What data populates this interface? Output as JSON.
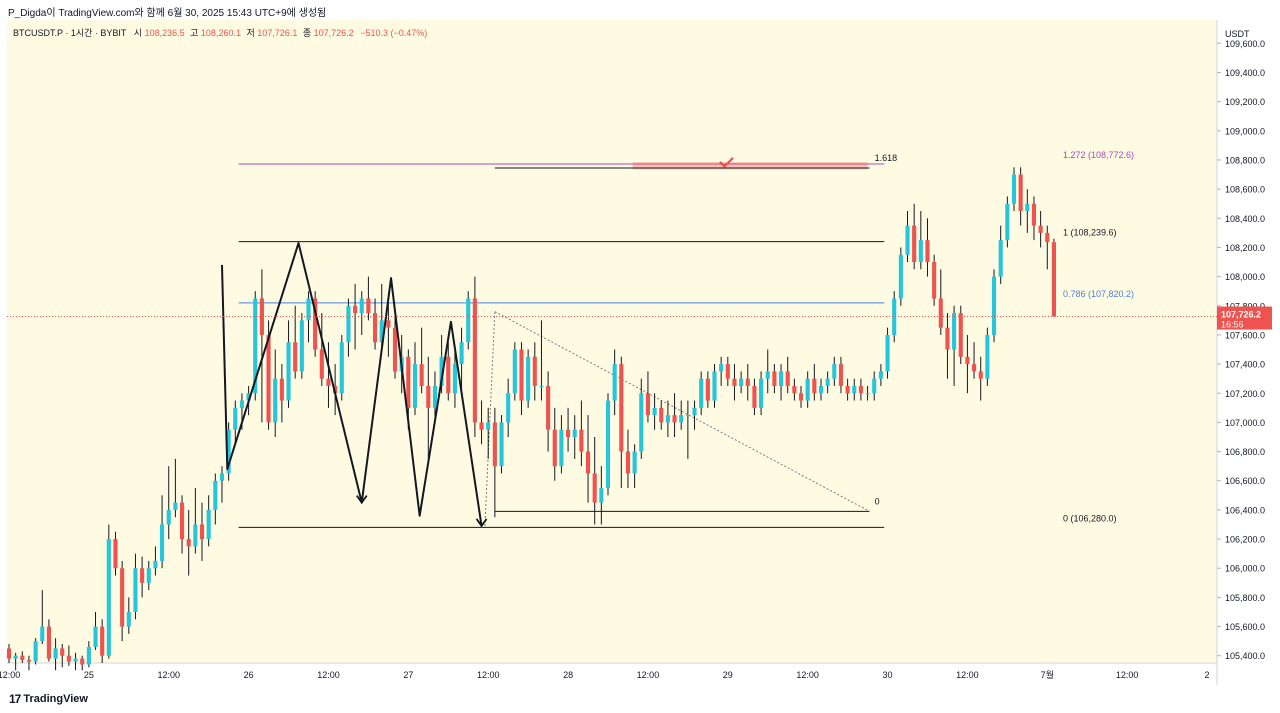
{
  "caption": "P_Digda이 TradingView.com와 함께 6월 30, 2025 15:43 UTC+9에 생성됨",
  "footer": {
    "logo_mark": "17",
    "brand": "TradingView"
  },
  "legend": {
    "symbol": "BTCUSDT.P · 1시간 · BYBIT",
    "o_label": "시",
    "o_value": "108,236.5",
    "h_label": "고",
    "h_value": "108,260.1",
    "l_label": "저",
    "l_value": "107,726.1",
    "c_label": "종",
    "c_value": "107,726.2",
    "change": "−510.3 (−0.47%)"
  },
  "colors": {
    "background": "#fffbe3",
    "up": "#26c6da",
    "down": "#ef5350",
    "wick": "#131722",
    "fib_1272": "#ab47bc",
    "fib_0786": "#4a7fe0",
    "price_tag": "#ef5350"
  },
  "chart_data": {
    "type": "candlestick",
    "currency": "USDT",
    "ylim": [
      105350,
      109760
    ],
    "y_ticks": [
      105400,
      105600,
      105800,
      106000,
      106200,
      106400,
      106600,
      106800,
      107000,
      107200,
      107400,
      107600,
      107800,
      108000,
      108200,
      108400,
      108600,
      108800,
      109000,
      109200,
      109400,
      109600
    ],
    "y_tick_labels": [
      "105,400.0",
      "105,600.0",
      "105,800.0",
      "106,000.0",
      "106,200.0",
      "106,400.0",
      "106,600.0",
      "106,800.0",
      "107,000.0",
      "107,200.0",
      "107,400.0",
      "107,600.0",
      "107,800.0",
      "108,000.0",
      "108,200.0",
      "108,400.0",
      "108,600.0",
      "108,800.0",
      "109,000.0",
      "109,200.0",
      "109,400.0",
      "109,600.0"
    ],
    "x_labels": [
      {
        "t": 0,
        "label": "12:00"
      },
      {
        "t": 12,
        "label": "25"
      },
      {
        "t": 24,
        "label": "12:00"
      },
      {
        "t": 36,
        "label": "26"
      },
      {
        "t": 48,
        "label": "12:00"
      },
      {
        "t": 60,
        "label": "27"
      },
      {
        "t": 72,
        "label": "12:00"
      },
      {
        "t": 84,
        "label": "28"
      },
      {
        "t": 96,
        "label": "12:00"
      },
      {
        "t": 108,
        "label": "29"
      },
      {
        "t": 120,
        "label": "12:00"
      },
      {
        "t": 132,
        "label": "30"
      },
      {
        "t": 144,
        "label": "12:00"
      },
      {
        "t": 156,
        "label": "7월"
      },
      {
        "t": 168,
        "label": "12:00"
      },
      {
        "t": 180,
        "label": "2"
      }
    ],
    "x_range": [
      -0.3,
      181.5
    ],
    "candles": [
      [
        105450,
        105480,
        105350,
        105380
      ],
      [
        105380,
        105420,
        105300,
        105400
      ],
      [
        105400,
        105430,
        105350,
        105370
      ],
      [
        105370,
        105400,
        105300,
        105360
      ],
      [
        105360,
        105520,
        105340,
        105500
      ],
      [
        105500,
        105850,
        105480,
        105600
      ],
      [
        105600,
        105650,
        105360,
        105380
      ],
      [
        105380,
        105520,
        105300,
        105450
      ],
      [
        105450,
        105480,
        105320,
        105400
      ],
      [
        105400,
        105470,
        105330,
        105360
      ],
      [
        105360,
        105420,
        105300,
        105380
      ],
      [
        105380,
        105400,
        105300,
        105340
      ],
      [
        105340,
        105500,
        105320,
        105460
      ],
      [
        105460,
        105700,
        105440,
        105600
      ],
      [
        105600,
        105650,
        105350,
        105400
      ],
      [
        105400,
        106300,
        105380,
        106200
      ],
      [
        106200,
        106250,
        105950,
        106000
      ],
      [
        106000,
        106050,
        105500,
        105600
      ],
      [
        105600,
        105800,
        105550,
        105700
      ],
      [
        105700,
        106100,
        105650,
        106000
      ],
      [
        106000,
        106080,
        105800,
        105900
      ],
      [
        105900,
        106050,
        105850,
        106000
      ],
      [
        106000,
        106150,
        105950,
        106050
      ],
      [
        106050,
        106500,
        106000,
        106300
      ],
      [
        106300,
        106700,
        106200,
        106400
      ],
      [
        106400,
        106750,
        106350,
        106450
      ],
      [
        106450,
        106500,
        106100,
        106200
      ],
      [
        106200,
        106400,
        105950,
        106150
      ],
      [
        106150,
        106550,
        106100,
        106300
      ],
      [
        106300,
        106450,
        106050,
        106200
      ],
      [
        106200,
        106500,
        106150,
        106400
      ],
      [
        106400,
        106650,
        106300,
        106600
      ],
      [
        106600,
        106700,
        106450,
        106650
      ],
      [
        106650,
        107000,
        106600,
        106950
      ],
      [
        106950,
        107150,
        106850,
        107100
      ],
      [
        107100,
        107200,
        106950,
        107150
      ],
      [
        107150,
        107250,
        107050,
        107200
      ],
      [
        107200,
        107900,
        107150,
        107850
      ],
      [
        107850,
        108050,
        107000,
        107600
      ],
      [
        107600,
        107700,
        106950,
        107000
      ],
      [
        107000,
        107500,
        106900,
        107300
      ],
      [
        107300,
        107400,
        107000,
        107150
      ],
      [
        107150,
        107700,
        107100,
        107550
      ],
      [
        107550,
        107800,
        107300,
        107350
      ],
      [
        107350,
        107750,
        107300,
        107700
      ],
      [
        107700,
        107900,
        107550,
        107850
      ],
      [
        107850,
        107900,
        107450,
        107500
      ],
      [
        107500,
        107750,
        107250,
        107300
      ],
      [
        107300,
        107550,
        107100,
        107250
      ],
      [
        107250,
        107400,
        107050,
        107200
      ],
      [
        107200,
        107600,
        107150,
        107550
      ],
      [
        107550,
        107850,
        107450,
        107800
      ],
      [
        107800,
        107950,
        107500,
        107750
      ],
      [
        107750,
        107900,
        107600,
        107850
      ],
      [
        107850,
        108000,
        107700,
        107750
      ],
      [
        107750,
        107850,
        107500,
        107550
      ],
      [
        107550,
        107950,
        107500,
        107700
      ],
      [
        107700,
        107850,
        107450,
        107650
      ],
      [
        107650,
        107750,
        107300,
        107350
      ],
      [
        107350,
        107600,
        107200,
        107450
      ],
      [
        107450,
        107500,
        106950,
        107100
      ],
      [
        107100,
        107550,
        107050,
        107400
      ],
      [
        107400,
        107650,
        107200,
        107250
      ],
      [
        107250,
        107450,
        106750,
        107100
      ],
      [
        107100,
        107350,
        107000,
        107250
      ],
      [
        107250,
        107600,
        107200,
        107450
      ],
      [
        107450,
        107550,
        107150,
        107200
      ],
      [
        107200,
        107500,
        107100,
        107400
      ],
      [
        107400,
        107650,
        107200,
        107550
      ],
      [
        107550,
        107900,
        107500,
        107850
      ],
      [
        107850,
        108000,
        106900,
        107000
      ],
      [
        107000,
        107150,
        106850,
        106950
      ],
      [
        106950,
        107100,
        106750,
        107000
      ],
      [
        107000,
        107100,
        106350,
        106700
      ],
      [
        106700,
        107050,
        106650,
        107000
      ],
      [
        107000,
        107300,
        106900,
        107200
      ],
      [
        107200,
        107550,
        107150,
        107500
      ],
      [
        107500,
        107550,
        107050,
        107150
      ],
      [
        107150,
        107500,
        107100,
        107450
      ],
      [
        107450,
        107550,
        107150,
        107250
      ],
      [
        107250,
        107700,
        107150,
        107250
      ],
      [
        107250,
        107350,
        106800,
        106950
      ],
      [
        106950,
        107100,
        106600,
        106700
      ],
      [
        106700,
        107050,
        106650,
        106950
      ],
      [
        106950,
        107100,
        106800,
        106900
      ],
      [
        106900,
        107050,
        106750,
        106950
      ],
      [
        106950,
        107150,
        106700,
        106800
      ],
      [
        106800,
        107050,
        106450,
        106650
      ],
      [
        106650,
        106900,
        106300,
        106450
      ],
      [
        106450,
        106700,
        106300,
        106550
      ],
      [
        106550,
        107200,
        106500,
        107150
      ],
      [
        107150,
        107500,
        107050,
        107400
      ],
      [
        107400,
        107450,
        106550,
        106800
      ],
      [
        106800,
        106950,
        106550,
        106650
      ],
      [
        106650,
        106850,
        106550,
        106800
      ],
      [
        106800,
        107300,
        106750,
        107200
      ],
      [
        107200,
        107350,
        107000,
        107050
      ],
      [
        107050,
        107200,
        106950,
        107100
      ],
      [
        107100,
        107150,
        106950,
        107000
      ],
      [
        107000,
        107150,
        106900,
        107050
      ],
      [
        107050,
        107200,
        106900,
        107000
      ],
      [
        107000,
        107150,
        106950,
        107050
      ],
      [
        107050,
        107150,
        106750,
        107050
      ],
      [
        107050,
        107150,
        106950,
        107100
      ],
      [
        107100,
        107350,
        107050,
        107300
      ],
      [
        107300,
        107350,
        107100,
        107150
      ],
      [
        107150,
        107400,
        107100,
        107350
      ],
      [
        107350,
        107450,
        107250,
        107400
      ],
      [
        107400,
        107450,
        107250,
        107300
      ],
      [
        107300,
        107400,
        107150,
        107250
      ],
      [
        107250,
        107350,
        107200,
        107300
      ],
      [
        107300,
        107400,
        107150,
        107250
      ],
      [
        107250,
        107300,
        107050,
        107100
      ],
      [
        107100,
        107350,
        107050,
        107300
      ],
      [
        107300,
        107500,
        107200,
        107350
      ],
      [
        107350,
        107400,
        107200,
        107250
      ],
      [
        107250,
        107400,
        107150,
        107350
      ],
      [
        107350,
        107450,
        107200,
        107250
      ],
      [
        107250,
        107300,
        107150,
        107200
      ],
      [
        107200,
        107250,
        107100,
        107150
      ],
      [
        107150,
        107350,
        107100,
        107300
      ],
      [
        107300,
        107400,
        107150,
        107200
      ],
      [
        107200,
        107300,
        107150,
        107250
      ],
      [
        107250,
        107350,
        107200,
        107300
      ],
      [
        107300,
        107450,
        107250,
        107400
      ],
      [
        107400,
        107450,
        107200,
        107250
      ],
      [
        107250,
        107300,
        107150,
        107200
      ],
      [
        107200,
        107300,
        107150,
        107250
      ],
      [
        107250,
        107300,
        107150,
        107200
      ],
      [
        107200,
        107250,
        107150,
        107200
      ],
      [
        107200,
        107350,
        107150,
        107300
      ],
      [
        107300,
        107400,
        107250,
        107350
      ],
      [
        107350,
        107650,
        107300,
        107600
      ],
      [
        107600,
        107900,
        107550,
        107850
      ],
      [
        107850,
        108200,
        107800,
        108150
      ],
      [
        108150,
        108450,
        108100,
        108350
      ],
      [
        108350,
        108500,
        108050,
        108100
      ],
      [
        108100,
        108450,
        108050,
        108250
      ],
      [
        108250,
        108400,
        108000,
        108100
      ],
      [
        108100,
        108150,
        107800,
        107850
      ],
      [
        107850,
        108050,
        107600,
        107650
      ],
      [
        107650,
        107750,
        107300,
        107500
      ],
      [
        107500,
        107800,
        107250,
        107750
      ],
      [
        107750,
        107800,
        107400,
        107450
      ],
      [
        107450,
        107600,
        107200,
        107400
      ],
      [
        107400,
        107550,
        107300,
        107350
      ],
      [
        107350,
        107450,
        107150,
        107300
      ],
      [
        107300,
        107650,
        107250,
        107600
      ],
      [
        107600,
        108050,
        107550,
        108000
      ],
      [
        108000,
        108350,
        107950,
        108250
      ],
      [
        108250,
        108550,
        108200,
        108500
      ],
      [
        108500,
        108750,
        108450,
        108700
      ],
      [
        108700,
        108750,
        108350,
        108450
      ],
      [
        108450,
        108600,
        108300,
        108500
      ],
      [
        108500,
        108550,
        108250,
        108350
      ],
      [
        108350,
        108450,
        108200,
        108300
      ],
      [
        108300,
        108350,
        108050,
        108236.5
      ],
      [
        108236.5,
        108260.1,
        107726.1,
        107726.2
      ]
    ],
    "current_price": {
      "value": 107726.2,
      "label": "107,726.2",
      "countdown": "16:56"
    },
    "fib_lines": [
      {
        "value": 108772.6,
        "label": "1.272 (108,772.6)",
        "color": "#ab47bc",
        "t0": 34.5,
        "t1": 131.5
      },
      {
        "value": 108239.6,
        "label": "1 (108,239.6)",
        "color": "#131722",
        "t0": 34.5,
        "t1": 131.5
      },
      {
        "value": 107820.2,
        "label": "0.786 (107,820.2)",
        "color": "#4a7fe0",
        "t0": 34.5,
        "t1": 131.5
      },
      {
        "value": 106280.0,
        "label": "0 (106,280.0)",
        "color": "#131722",
        "t0": 34.5,
        "t1": 131.5
      }
    ],
    "projection": {
      "top_line": {
        "value": 108745,
        "t0": 73,
        "t1": 129.3,
        "label": "1.618"
      },
      "bottom_line": {
        "value": 106390,
        "t0": 73,
        "t1": 129.3,
        "label": "0"
      },
      "diagonal": {
        "t0": 73,
        "p0": 107760,
        "t1": 129.3,
        "p1": 106390
      },
      "dotted_start": {
        "t0": 71.5,
        "p0": 106290,
        "t1": 73,
        "p1": 107760
      }
    },
    "target_zone": {
      "t0": 93.7,
      "t1": 129,
      "p0": 108735,
      "p1": 108785
    },
    "check_mark": {
      "t": 107.8,
      "value": 108790
    },
    "zigzag": [
      [
        32,
        108080
      ],
      [
        32.8,
        106680
      ],
      [
        43.5,
        108230
      ],
      [
        53,
        106450
      ],
      [
        57.4,
        107990
      ],
      [
        61.7,
        106360
      ],
      [
        66.4,
        107690
      ],
      [
        71,
        106290
      ]
    ],
    "arrow_tips": [
      [
        53,
        106450
      ],
      [
        71,
        106290
      ]
    ]
  }
}
